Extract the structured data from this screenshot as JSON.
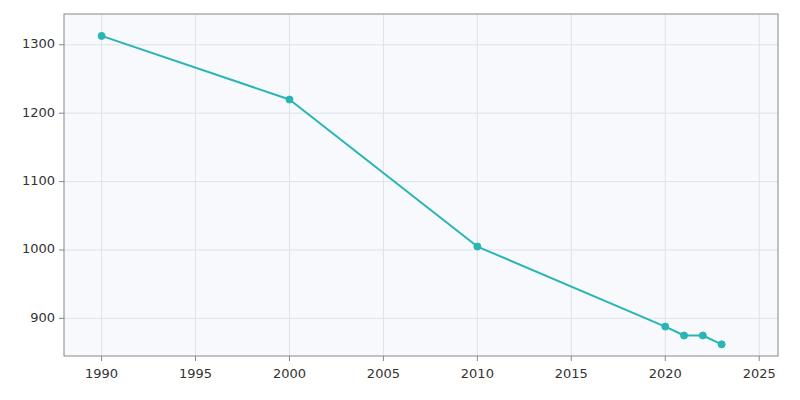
{
  "chart_data": {
    "type": "line",
    "x": [
      1990,
      2000,
      2010,
      2020,
      2021,
      2022,
      2023
    ],
    "values": [
      1313,
      1220,
      1005,
      888,
      875,
      875,
      862
    ],
    "color": "#2ab5b5",
    "marker": "circle",
    "xlim": [
      1988,
      2026
    ],
    "ylim": [
      845,
      1345
    ],
    "xticks": [
      1990,
      1995,
      2000,
      2005,
      2010,
      2015,
      2020,
      2025
    ],
    "yticks": [
      900,
      1000,
      1100,
      1200,
      1300
    ],
    "grid": true
  }
}
